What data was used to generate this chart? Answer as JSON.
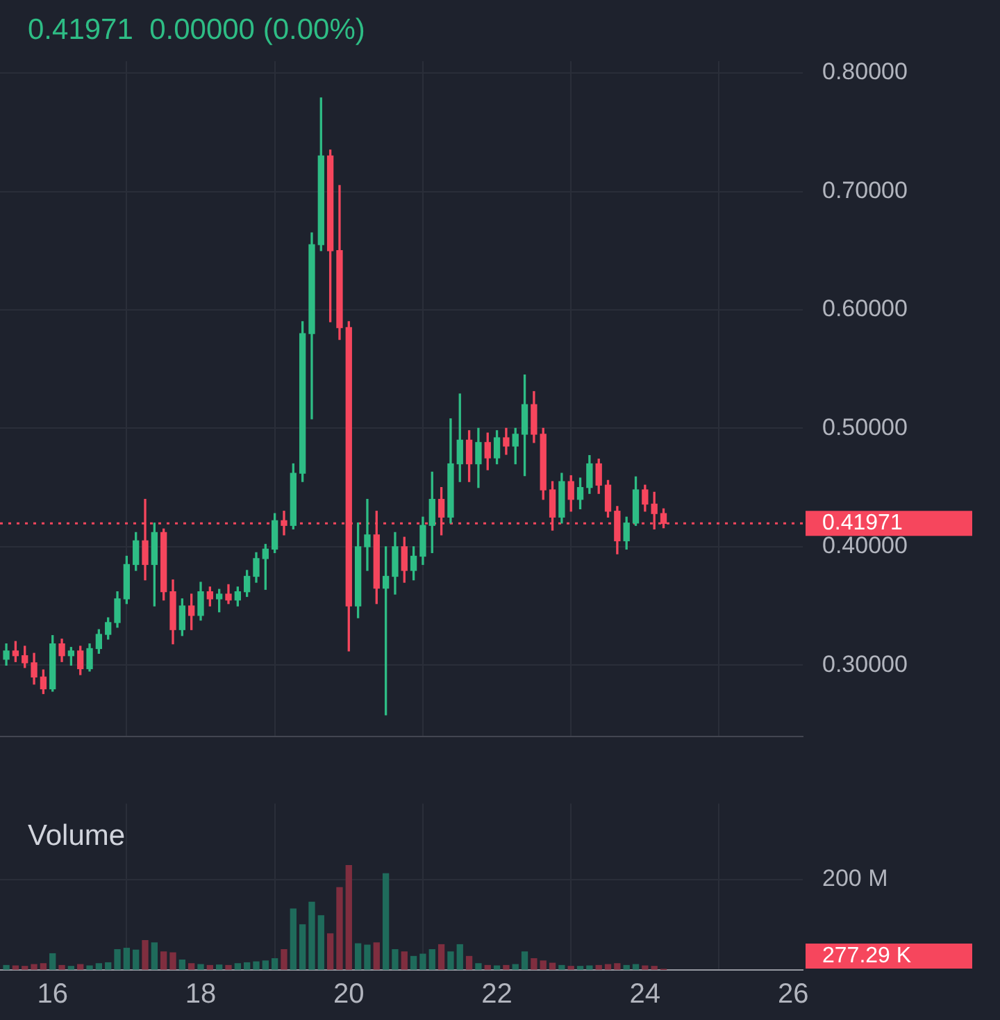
{
  "chart_data": [
    {
      "type": "candlestick",
      "subtitle": "0.41971  0.00000 (0.00%)",
      "x": [
        15.375,
        15.5,
        15.625,
        15.75,
        15.875,
        16,
        16.125,
        16.25,
        16.375,
        16.5,
        16.625,
        16.75,
        16.875,
        17,
        17.125,
        17.25,
        17.375,
        17.5,
        17.625,
        17.75,
        17.875,
        18,
        18.125,
        18.25,
        18.375,
        18.5,
        18.625,
        18.75,
        18.875,
        19,
        19.125,
        19.25,
        19.375,
        19.5,
        19.625,
        19.75,
        19.875,
        20,
        20.125,
        20.25,
        20.375,
        20.5,
        20.625,
        20.75,
        20.875,
        21,
        21.125,
        21.25,
        21.375,
        21.5,
        21.625,
        21.75,
        21.875,
        22,
        22.125,
        22.25,
        22.375,
        22.5,
        22.625,
        22.75,
        22.875,
        23,
        23.125,
        23.25,
        23.375,
        23.5,
        23.625,
        23.75,
        23.875,
        24,
        24.125,
        24.25
      ],
      "ohlc": [
        [
          0.305,
          0.318,
          0.3,
          0.312
        ],
        [
          0.312,
          0.32,
          0.303,
          0.308
        ],
        [
          0.308,
          0.316,
          0.298,
          0.302
        ],
        [
          0.302,
          0.31,
          0.284,
          0.29
        ],
        [
          0.29,
          0.296,
          0.276,
          0.28
        ],
        [
          0.28,
          0.325,
          0.278,
          0.318
        ],
        [
          0.318,
          0.322,
          0.303,
          0.308
        ],
        [
          0.308,
          0.315,
          0.3,
          0.312
        ],
        [
          0.312,
          0.316,
          0.292,
          0.297
        ],
        [
          0.297,
          0.318,
          0.295,
          0.314
        ],
        [
          0.314,
          0.33,
          0.31,
          0.326
        ],
        [
          0.326,
          0.34,
          0.322,
          0.336
        ],
        [
          0.336,
          0.362,
          0.332,
          0.356
        ],
        [
          0.356,
          0.392,
          0.352,
          0.385
        ],
        [
          0.385,
          0.412,
          0.38,
          0.405
        ],
        [
          0.405,
          0.44,
          0.372,
          0.385
        ],
        [
          0.385,
          0.42,
          0.35,
          0.412
        ],
        [
          0.412,
          0.415,
          0.355,
          0.362
        ],
        [
          0.362,
          0.372,
          0.318,
          0.33
        ],
        [
          0.33,
          0.356,
          0.325,
          0.35
        ],
        [
          0.35,
          0.36,
          0.33,
          0.342
        ],
        [
          0.342,
          0.37,
          0.338,
          0.362
        ],
        [
          0.362,
          0.366,
          0.35,
          0.356
        ],
        [
          0.356,
          0.364,
          0.345,
          0.36
        ],
        [
          0.36,
          0.368,
          0.352,
          0.355
        ],
        [
          0.355,
          0.366,
          0.35,
          0.362
        ],
        [
          0.362,
          0.38,
          0.358,
          0.375
        ],
        [
          0.375,
          0.395,
          0.37,
          0.39
        ],
        [
          0.39,
          0.402,
          0.364,
          0.398
        ],
        [
          0.398,
          0.428,
          0.395,
          0.422
        ],
        [
          0.422,
          0.43,
          0.41,
          0.418
        ],
        [
          0.418,
          0.47,
          0.415,
          0.462
        ],
        [
          0.462,
          0.59,
          0.455,
          0.58
        ],
        [
          0.58,
          0.665,
          0.508,
          0.655
        ],
        [
          0.655,
          0.779,
          0.65,
          0.73
        ],
        [
          0.73,
          0.735,
          0.59,
          0.65
        ],
        [
          0.65,
          0.705,
          0.575,
          0.585
        ],
        [
          0.585,
          0.59,
          0.312,
          0.35
        ],
        [
          0.35,
          0.42,
          0.34,
          0.4
        ],
        [
          0.4,
          0.44,
          0.38,
          0.41
        ],
        [
          0.41,
          0.43,
          0.352,
          0.365
        ],
        [
          0.365,
          0.4,
          0.258,
          0.375
        ],
        [
          0.375,
          0.412,
          0.36,
          0.4
        ],
        [
          0.4,
          0.408,
          0.37,
          0.38
        ],
        [
          0.38,
          0.4,
          0.372,
          0.392
        ],
        [
          0.392,
          0.425,
          0.385,
          0.418
        ],
        [
          0.418,
          0.463,
          0.395,
          0.44
        ],
        [
          0.44,
          0.45,
          0.41,
          0.425
        ],
        [
          0.425,
          0.508,
          0.42,
          0.47
        ],
        [
          0.47,
          0.529,
          0.455,
          0.49
        ],
        [
          0.49,
          0.498,
          0.455,
          0.47
        ],
        [
          0.47,
          0.5,
          0.45,
          0.488
        ],
        [
          0.488,
          0.496,
          0.465,
          0.475
        ],
        [
          0.475,
          0.498,
          0.47,
          0.492
        ],
        [
          0.492,
          0.5,
          0.478,
          0.485
        ],
        [
          0.485,
          0.5,
          0.47,
          0.495
        ],
        [
          0.495,
          0.545,
          0.46,
          0.52
        ],
        [
          0.52,
          0.531,
          0.488,
          0.495
        ],
        [
          0.495,
          0.5,
          0.44,
          0.448
        ],
        [
          0.448,
          0.455,
          0.414,
          0.425
        ],
        [
          0.425,
          0.462,
          0.42,
          0.455
        ],
        [
          0.455,
          0.46,
          0.43,
          0.44
        ],
        [
          0.44,
          0.458,
          0.432,
          0.45
        ],
        [
          0.45,
          0.477,
          0.445,
          0.47
        ],
        [
          0.47,
          0.474,
          0.445,
          0.452
        ],
        [
          0.452,
          0.456,
          0.425,
          0.43
        ],
        [
          0.43,
          0.434,
          0.394,
          0.405
        ],
        [
          0.405,
          0.425,
          0.398,
          0.42
        ],
        [
          0.42,
          0.459,
          0.418,
          0.448
        ],
        [
          0.448,
          0.452,
          0.43,
          0.436
        ],
        [
          0.436,
          0.446,
          0.415,
          0.428
        ],
        [
          0.428,
          0.432,
          0.416,
          0.41971
        ]
      ],
      "colors": [
        "#2ebd85",
        "#f6465d",
        "#f6465d",
        "#f6465d",
        "#f6465d",
        "#2ebd85",
        "#f6465d",
        "#2ebd85",
        "#f6465d",
        "#2ebd85",
        "#2ebd85",
        "#2ebd85",
        "#2ebd85",
        "#2ebd85",
        "#2ebd85",
        "#f6465d",
        "#2ebd85",
        "#f6465d",
        "#f6465d",
        "#2ebd85",
        "#f6465d",
        "#2ebd85",
        "#f6465d",
        "#2ebd85",
        "#f6465d",
        "#2ebd85",
        "#2ebd85",
        "#2ebd85",
        "#2ebd85",
        "#2ebd85",
        "#f6465d",
        "#2ebd85",
        "#2ebd85",
        "#2ebd85",
        "#2ebd85",
        "#f6465d",
        "#f6465d",
        "#f6465d",
        "#2ebd85",
        "#2ebd85",
        "#f6465d",
        "#2ebd85",
        "#2ebd85",
        "#f6465d",
        "#2ebd85",
        "#2ebd85",
        "#2ebd85",
        "#f6465d",
        "#2ebd85",
        "#2ebd85",
        "#f6465d",
        "#2ebd85",
        "#f6465d",
        "#2ebd85",
        "#f6465d",
        "#2ebd85",
        "#2ebd85",
        "#f6465d",
        "#f6465d",
        "#f6465d",
        "#2ebd85",
        "#f6465d",
        "#2ebd85",
        "#2ebd85",
        "#f6465d",
        "#f6465d",
        "#f6465d",
        "#2ebd85",
        "#2ebd85",
        "#f6465d",
        "#f6465d",
        "#f6465d"
      ],
      "xlim": [
        15.29,
        26.13
      ],
      "xticks": [
        16,
        18,
        20,
        22,
        24,
        26
      ],
      "ylim": [
        0.24,
        0.81
      ],
      "yticks": [
        {
          "value": 0.3,
          "label": "0.30000"
        },
        {
          "value": 0.4,
          "label": "0.40000"
        },
        {
          "value": 0.5,
          "label": "0.50000"
        },
        {
          "value": 0.6,
          "label": "0.60000"
        },
        {
          "value": 0.7,
          "label": "0.70000"
        },
        {
          "value": 0.8,
          "label": "0.80000"
        }
      ],
      "grid": true,
      "tick_labels": "y",
      "ref_lines": [
        {
          "axis": "y",
          "value": 0.41971,
          "label": "0.41971",
          "color": "#f6465d",
          "line_style": "dotted"
        }
      ]
    },
    {
      "type": "bar",
      "title": "Volume",
      "x": [
        15.375,
        15.5,
        15.625,
        15.75,
        15.875,
        16,
        16.125,
        16.25,
        16.375,
        16.5,
        16.625,
        16.75,
        16.875,
        17,
        17.125,
        17.25,
        17.375,
        17.5,
        17.625,
        17.75,
        17.875,
        18,
        18.125,
        18.25,
        18.375,
        18.5,
        18.625,
        18.75,
        18.875,
        19,
        19.125,
        19.25,
        19.375,
        19.5,
        19.625,
        19.75,
        19.875,
        20,
        20.125,
        20.25,
        20.375,
        20.5,
        20.625,
        20.75,
        20.875,
        21,
        21.125,
        21.25,
        21.375,
        21.5,
        21.625,
        21.75,
        21.875,
        22,
        22.125,
        22.25,
        22.375,
        22.5,
        22.625,
        22.75,
        22.875,
        23,
        23.125,
        23.25,
        23.375,
        23.5,
        23.625,
        23.75,
        23.875,
        24,
        24.125,
        24.25
      ],
      "values": [
        10,
        9,
        8,
        12,
        14,
        36,
        10,
        8,
        12,
        9,
        14,
        16,
        45,
        48,
        44,
        65,
        60,
        40,
        38,
        22,
        14,
        12,
        10,
        11,
        10,
        14,
        16,
        18,
        20,
        25,
        45,
        135,
        100,
        150,
        120,
        80,
        182,
        231,
        58,
        55,
        60,
        213,
        45,
        40,
        30,
        35,
        45,
        56,
        40,
        56,
        30,
        14,
        10,
        9,
        10,
        12,
        40,
        25,
        20,
        15,
        10,
        8,
        8,
        9,
        10,
        12,
        14,
        10,
        12,
        9,
        8,
        0.27729
      ],
      "colors": [
        "#1f6b5b",
        "#7f2e3f",
        "#7f2e3f",
        "#7f2e3f",
        "#7f2e3f",
        "#1f6b5b",
        "#7f2e3f",
        "#1f6b5b",
        "#7f2e3f",
        "#1f6b5b",
        "#1f6b5b",
        "#1f6b5b",
        "#1f6b5b",
        "#1f6b5b",
        "#1f6b5b",
        "#7f2e3f",
        "#1f6b5b",
        "#7f2e3f",
        "#7f2e3f",
        "#1f6b5b",
        "#7f2e3f",
        "#1f6b5b",
        "#7f2e3f",
        "#1f6b5b",
        "#7f2e3f",
        "#1f6b5b",
        "#1f6b5b",
        "#1f6b5b",
        "#1f6b5b",
        "#1f6b5b",
        "#7f2e3f",
        "#1f6b5b",
        "#1f6b5b",
        "#1f6b5b",
        "#1f6b5b",
        "#7f2e3f",
        "#7f2e3f",
        "#7f2e3f",
        "#1f6b5b",
        "#1f6b5b",
        "#7f2e3f",
        "#1f6b5b",
        "#1f6b5b",
        "#7f2e3f",
        "#1f6b5b",
        "#1f6b5b",
        "#1f6b5b",
        "#7f2e3f",
        "#1f6b5b",
        "#1f6b5b",
        "#7f2e3f",
        "#1f6b5b",
        "#7f2e3f",
        "#1f6b5b",
        "#7f2e3f",
        "#1f6b5b",
        "#1f6b5b",
        "#7f2e3f",
        "#7f2e3f",
        "#7f2e3f",
        "#1f6b5b",
        "#7f2e3f",
        "#1f6b5b",
        "#1f6b5b",
        "#7f2e3f",
        "#7f2e3f",
        "#7f2e3f",
        "#1f6b5b",
        "#1f6b5b",
        "#7f2e3f",
        "#7f2e3f",
        "#7f2e3f"
      ],
      "xlim": [
        15.29,
        26.13
      ],
      "xticks": [
        16,
        18,
        20,
        22,
        24,
        26
      ],
      "ylim": [
        0,
        368
      ],
      "yticks": [
        {
          "value": 0,
          "label": null
        },
        {
          "value": 200,
          "label": "200 M"
        }
      ],
      "grid": true,
      "annotations": [
        "277.29 K"
      ]
    }
  ]
}
